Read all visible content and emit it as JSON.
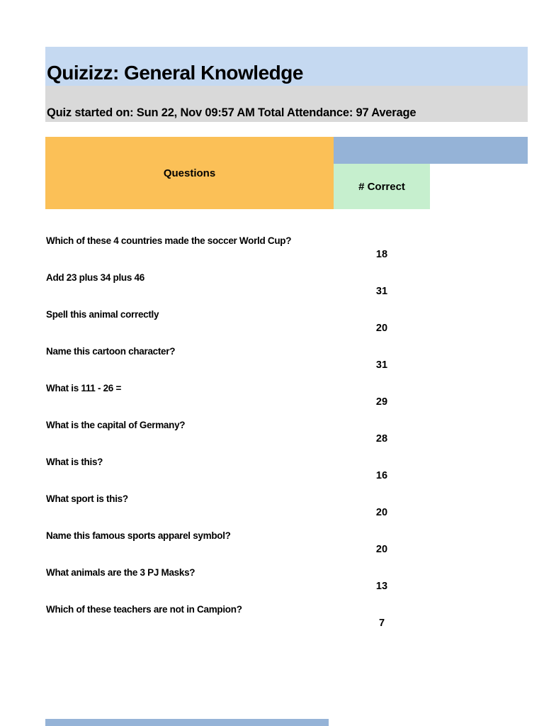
{
  "page": {
    "title": "Quizizz: General Knowledge",
    "subtitle": "Quiz started on: Sun 22, Nov 09:57 AM Total Attendance: 97 Average"
  },
  "table": {
    "columns": {
      "questions": "Questions",
      "correct": "# Correct"
    },
    "rows": [
      {
        "question": "Which of these 4 countries made the soccer World Cup?",
        "correct": "18"
      },
      {
        "question": "Add 23 plus 34 plus 46",
        "correct": "31"
      },
      {
        "question": "Spell this animal correctly",
        "correct": "20"
      },
      {
        "question": "Name this cartoon character?",
        "correct": "31"
      },
      {
        "question": "What is 111 - 26 =",
        "correct": "29"
      },
      {
        "question": "What is the capital of Germany?",
        "correct": "28"
      },
      {
        "question": "What is this?",
        "correct": "16"
      },
      {
        "question": "What sport is this?",
        "correct": "20"
      },
      {
        "question": "Name this famous sports apparel symbol?",
        "correct": "20"
      },
      {
        "question": "What animals are the 3 PJ Masks?",
        "correct": "13"
      },
      {
        "question": "Which of these teachers are not in Campion?",
        "correct": "7"
      }
    ]
  },
  "colors": {
    "title_band": "#c5d9f1",
    "subtitle_band": "#d9d9d9",
    "questions_header": "#fbc057",
    "header_bar": "#95b3d7",
    "correct_header": "#c6efce",
    "text": "#000000"
  }
}
